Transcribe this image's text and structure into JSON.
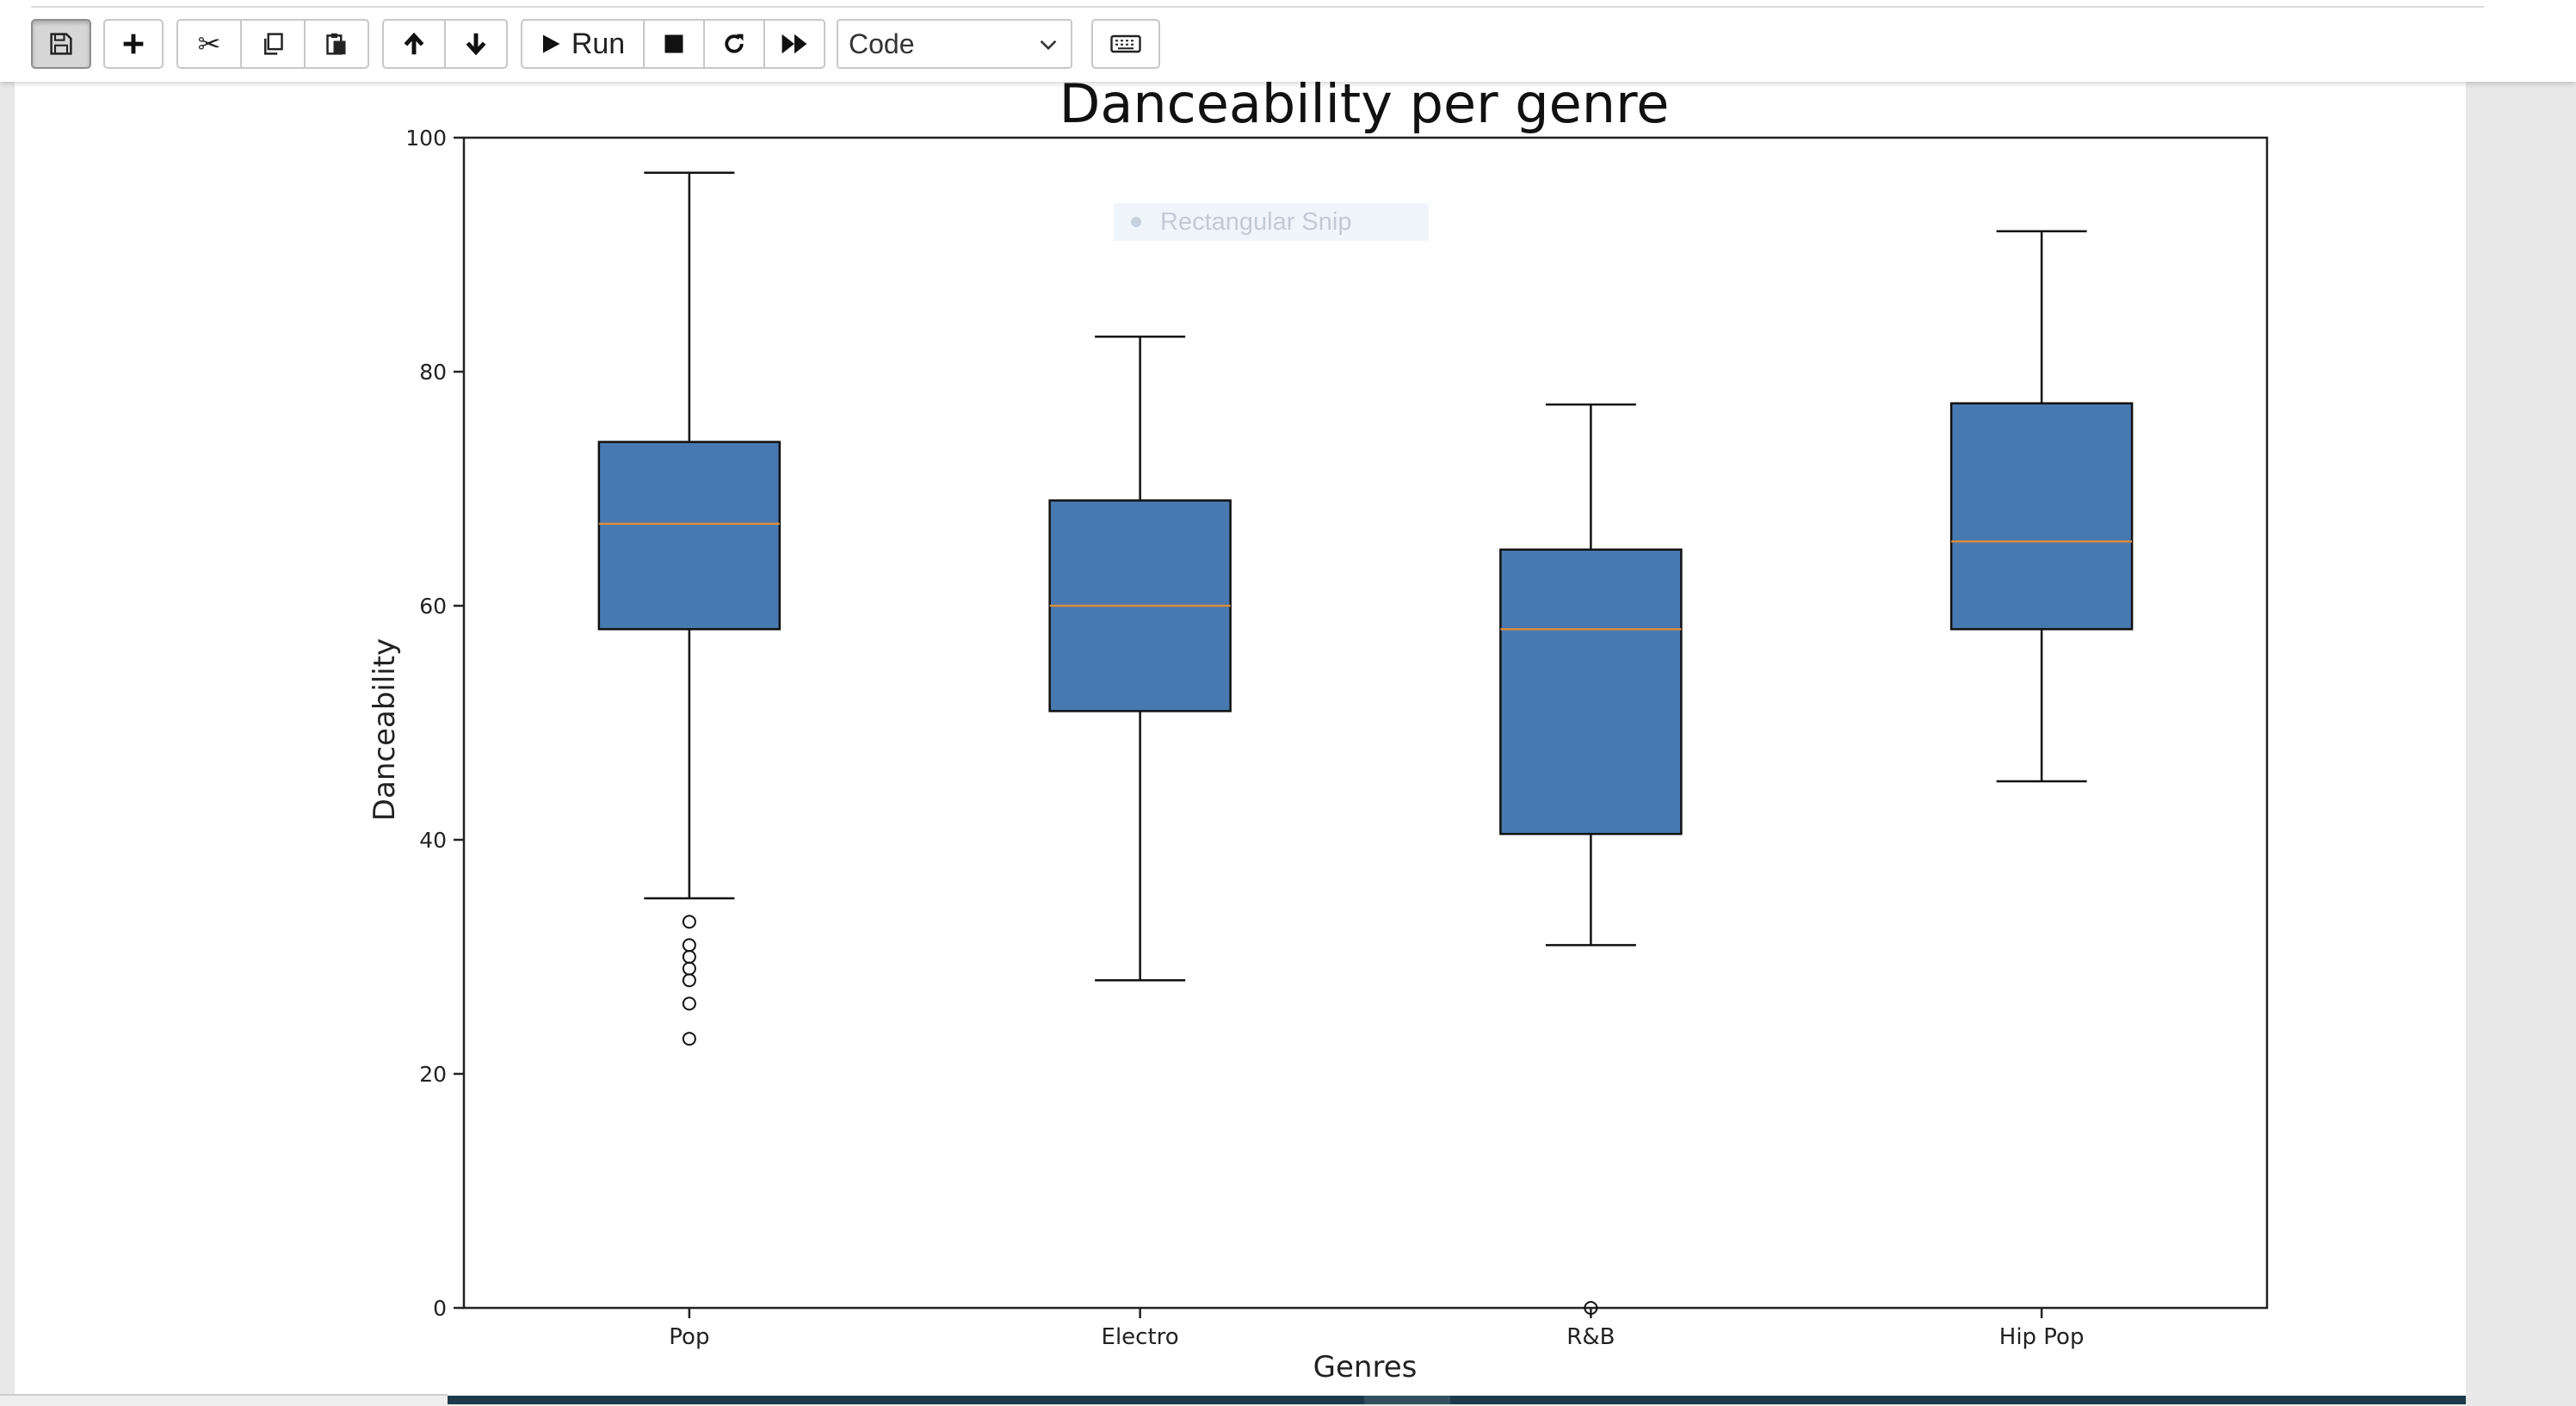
{
  "toolbar": {
    "buttons": [
      {
        "name": "save",
        "icon": "floppy-disk-icon",
        "glyph": "💾"
      },
      {
        "name": "insert-cell",
        "icon": "plus-icon",
        "glyph": "+"
      },
      {
        "name": "cut",
        "icon": "scissors-icon",
        "glyph": "✂"
      },
      {
        "name": "copy",
        "icon": "copy-icon",
        "glyph": "⧉"
      },
      {
        "name": "paste",
        "icon": "clipboard-icon",
        "glyph": "📋"
      },
      {
        "name": "move-up",
        "icon": "arrow-up-icon",
        "glyph": "🡑"
      },
      {
        "name": "move-down",
        "icon": "arrow-down-icon",
        "glyph": "🡓"
      },
      {
        "name": "run",
        "icon": "play-icon",
        "glyph": "▶"
      },
      {
        "name": "interrupt",
        "icon": "stop-icon",
        "glyph": "■"
      },
      {
        "name": "restart",
        "icon": "restart-icon",
        "glyph": "↻"
      },
      {
        "name": "run-all",
        "icon": "fast-forward-icon",
        "glyph": "⏩"
      },
      {
        "name": "keyboard",
        "icon": "keyboard-icon",
        "glyph": "⌨"
      }
    ],
    "run_label": "Run",
    "celltype_value": "Code",
    "celltype_chevron": "chevron-down-icon"
  },
  "snip_overlay": {
    "label": "Rectangular Snip"
  },
  "chart_data": {
    "type": "boxplot",
    "title": "Danceability per genre",
    "xlabel": "Genres",
    "ylabel": "Danceability",
    "ylim": [
      0,
      100
    ],
    "yticks": [
      "0",
      "20",
      "40",
      "60",
      "80",
      "100"
    ],
    "categories": [
      "Pop",
      "Electro",
      "R&B",
      "Hip Pop"
    ],
    "boxes": [
      {
        "category": "Pop",
        "whislo": 35,
        "q1": 58,
        "med": 67,
        "q3": 74,
        "whishi": 97,
        "fliers": [
          33,
          31,
          30,
          29,
          28,
          26,
          23
        ]
      },
      {
        "category": "Electro",
        "whislo": 28,
        "q1": 51,
        "med": 60,
        "q3": 69,
        "whishi": 83,
        "fliers": []
      },
      {
        "category": "R&B",
        "whislo": 31,
        "q1": 40.5,
        "med": 58,
        "q3": 64.8,
        "whishi": 77.2,
        "fliers": [
          0
        ]
      },
      {
        "category": "Hip Pop",
        "whislo": 45,
        "q1": 58,
        "med": 65.5,
        "q3": 77.3,
        "whishi": 92,
        "fliers": []
      }
    ],
    "box_color": "#4878b0",
    "median_color": "#d98a3d",
    "grid": false,
    "legend": "none"
  }
}
